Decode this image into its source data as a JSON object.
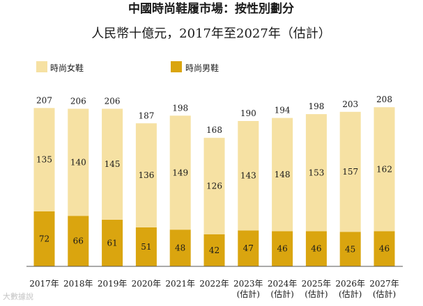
{
  "chart_data": {
    "type": "bar",
    "stacked": true,
    "title": "中國時尚鞋履市場：按性別劃分",
    "subtitle": "人民幣十億元，2017年至2027年（估計）",
    "categories": [
      "2017年",
      "2018年",
      "2019年",
      "2020年",
      "2021年",
      "2022年",
      "2023年\n(估計)",
      "2024年\n(估計)",
      "2025年\n(估計)",
      "2026年\n(估計)",
      "2027年\n(估計)"
    ],
    "series": [
      {
        "name": "時尚男鞋",
        "color": "#daa50f",
        "values": [
          72,
          66,
          61,
          51,
          48,
          42,
          47,
          46,
          46,
          45,
          46
        ]
      },
      {
        "name": "時尚女鞋",
        "color": "#f6e1a3",
        "values": [
          135,
          140,
          145,
          136,
          149,
          126,
          143,
          148,
          153,
          157,
          162
        ]
      }
    ],
    "totals": [
      207,
      206,
      206,
      187,
      198,
      168,
      190,
      194,
      198,
      203,
      208
    ],
    "legend_order": [
      "時尚女鞋",
      "時尚男鞋"
    ],
    "ylim": [
      0,
      250
    ],
    "grid": false
  },
  "watermark": "大數據說"
}
